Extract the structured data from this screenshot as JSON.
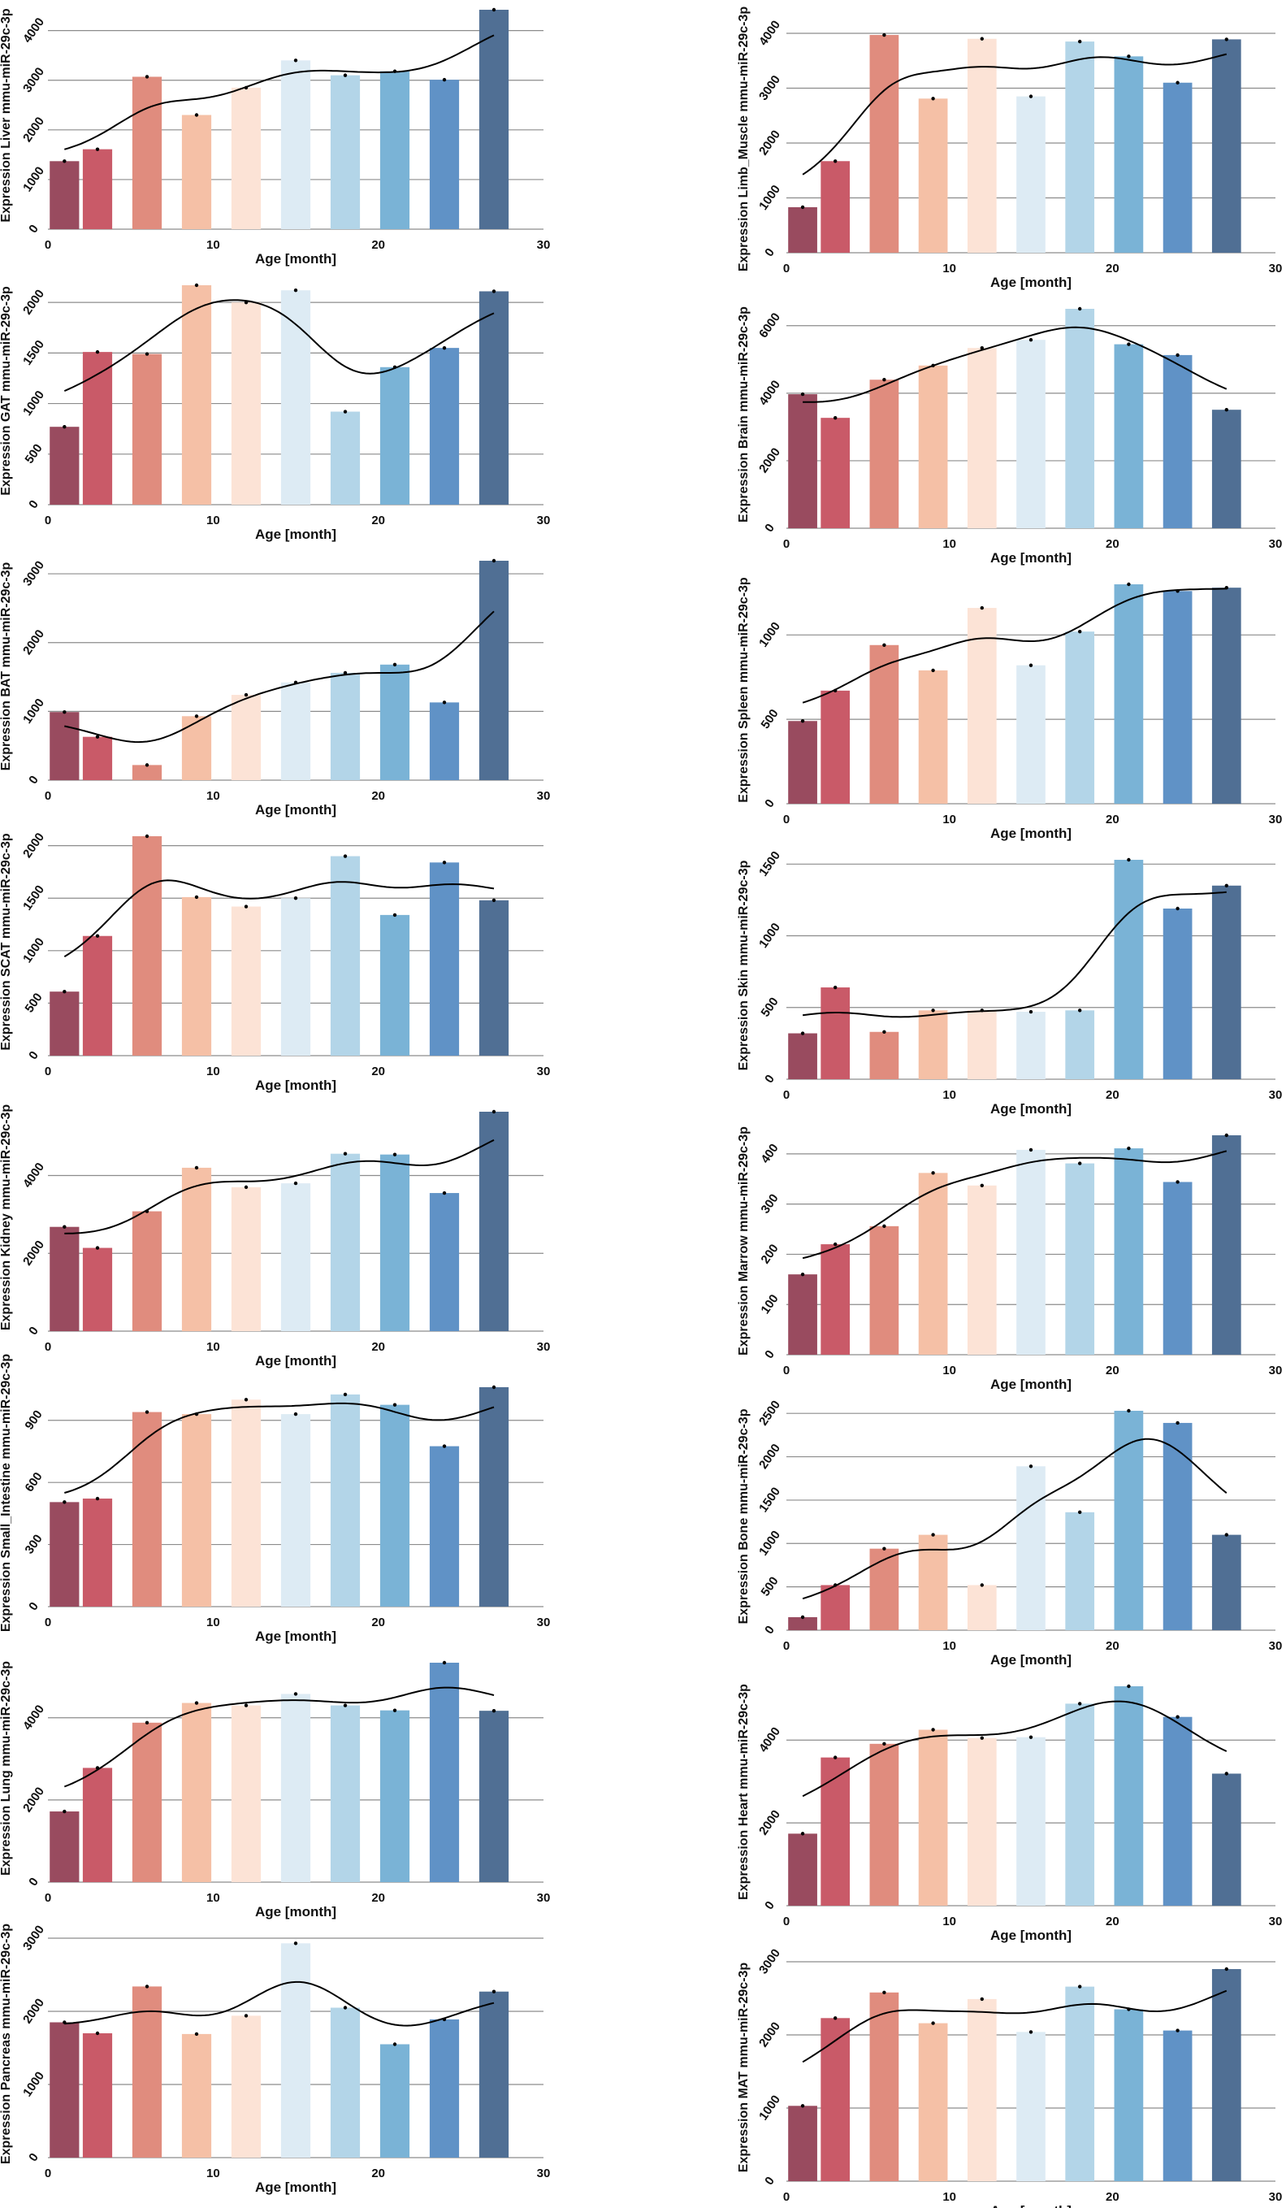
{
  "bar_colors": [
    "#994b5f",
    "#c95a68",
    "#e08c7e",
    "#f5c0a6",
    "#fce3d6",
    "#ddebf4",
    "#b3d5e8",
    "#7ab3d6",
    "#6092c6",
    "#506f94"
  ],
  "overlay": "smoothed trend line",
  "chart_data": [
    {
      "type": "bar",
      "xlabel": "Age [month]",
      "ylabel": "Expression Liver mmu-miR-29c-3p",
      "xlim": [
        0,
        30
      ],
      "xticks": [
        0,
        10,
        20,
        30
      ],
      "yticks": [
        0,
        1000,
        2000,
        3000,
        4000
      ],
      "x": [
        1,
        3,
        6,
        9,
        12,
        15,
        18,
        21,
        24,
        27
      ],
      "values": [
        1370,
        1610,
        3070,
        2300,
        2850,
        3400,
        3100,
        3180,
        3010,
        4420
      ]
    },
    {
      "type": "bar",
      "xlabel": "Age [month]",
      "ylabel": "Expression GAT mmu-miR-29c-3p",
      "xlim": [
        0,
        30
      ],
      "xticks": [
        0,
        10,
        20,
        30
      ],
      "yticks": [
        0,
        500,
        1000,
        1500,
        2000
      ],
      "x": [
        1,
        3,
        6,
        9,
        12,
        15,
        18,
        21,
        24,
        27
      ],
      "values": [
        770,
        1510,
        1490,
        2170,
        2000,
        2120,
        920,
        1360,
        1550,
        2110
      ]
    },
    {
      "type": "bar",
      "xlabel": "Age [month]",
      "ylabel": "Expression BAT mmu-miR-29c-3p",
      "xlim": [
        0,
        30
      ],
      "xticks": [
        0,
        10,
        20,
        30
      ],
      "yticks": [
        0,
        1000,
        2000,
        3000
      ],
      "x": [
        1,
        3,
        6,
        9,
        12,
        15,
        18,
        21,
        24,
        27
      ],
      "values": [
        990,
        630,
        220,
        930,
        1240,
        1420,
        1560,
        1680,
        1130,
        3190
      ]
    },
    {
      "type": "bar",
      "xlabel": "Age [month]",
      "ylabel": "Expression SCAT mmu-miR-29c-3p",
      "xlim": [
        0,
        30
      ],
      "xticks": [
        0,
        10,
        20,
        30
      ],
      "yticks": [
        0,
        500,
        1000,
        1500,
        2000
      ],
      "x": [
        1,
        3,
        6,
        9,
        12,
        15,
        18,
        21,
        24,
        27
      ],
      "values": [
        610,
        1140,
        2090,
        1510,
        1420,
        1500,
        1900,
        1340,
        1840,
        1480
      ]
    },
    {
      "type": "bar",
      "xlabel": "Age [month]",
      "ylabel": "Expression Kidney mmu-miR-29c-3p",
      "xlim": [
        0,
        30
      ],
      "xticks": [
        0,
        10,
        20,
        30
      ],
      "yticks": [
        0,
        2000,
        4000
      ],
      "x": [
        1,
        3,
        6,
        9,
        12,
        15,
        18,
        21,
        24,
        27
      ],
      "values": [
        2680,
        2140,
        3080,
        4200,
        3700,
        3800,
        4560,
        4540,
        3550,
        5640
      ]
    },
    {
      "type": "bar",
      "xlabel": "Age [month]",
      "ylabel": "Expression Small_Intestine mmu-miR-29c-3p",
      "xlim": [
        0,
        30
      ],
      "xticks": [
        0,
        10,
        20,
        30
      ],
      "yticks": [
        0,
        300,
        600,
        900
      ],
      "x": [
        1,
        3,
        6,
        9,
        12,
        15,
        18,
        21,
        24,
        27
      ],
      "values": [
        505,
        522,
        940,
        930,
        1000,
        930,
        1025,
        975,
        775,
        1060
      ]
    },
    {
      "type": "bar",
      "xlabel": "Age [month]",
      "ylabel": "Expression Lung mmu-miR-29c-3p",
      "xlim": [
        0,
        30
      ],
      "xticks": [
        0,
        10,
        20,
        30
      ],
      "yticks": [
        0,
        2000,
        4000
      ],
      "x": [
        1,
        3,
        6,
        9,
        12,
        15,
        18,
        21,
        24,
        27
      ],
      "values": [
        1720,
        2780,
        3880,
        4360,
        4300,
        4580,
        4300,
        4180,
        5340,
        4170
      ]
    },
    {
      "type": "bar",
      "xlabel": "Age [month]",
      "ylabel": "Expression Pancreas mmu-miR-29c-3p",
      "xlim": [
        0,
        30
      ],
      "xticks": [
        0,
        10,
        20,
        30
      ],
      "yticks": [
        0,
        1000,
        2000,
        3000
      ],
      "x": [
        1,
        3,
        6,
        9,
        12,
        15,
        18,
        21,
        24,
        27
      ],
      "values": [
        1850,
        1700,
        2340,
        1690,
        1940,
        2930,
        2050,
        1550,
        1890,
        2270
      ]
    },
    {
      "type": "bar",
      "xlabel": "Age [month]",
      "ylabel": "Expression Limb_Muscle mmu-miR-29c-3p",
      "xlim": [
        0,
        30
      ],
      "xticks": [
        0,
        10,
        20,
        30
      ],
      "yticks": [
        0,
        1000,
        2000,
        3000,
        4000
      ],
      "x": [
        1,
        3,
        6,
        9,
        12,
        15,
        18,
        21,
        24,
        27
      ],
      "values": [
        830,
        1670,
        3970,
        2810,
        3900,
        2850,
        3850,
        3580,
        3100,
        3890
      ]
    },
    {
      "type": "bar",
      "xlabel": "Age [month]",
      "ylabel": "Expression Brain mmu-miR-29c-3p",
      "xlim": [
        0,
        30
      ],
      "xticks": [
        0,
        10,
        20,
        30
      ],
      "yticks": [
        0,
        2000,
        4000,
        6000
      ],
      "x": [
        1,
        3,
        6,
        9,
        12,
        15,
        18,
        21,
        24,
        27
      ],
      "values": [
        3970,
        3270,
        4400,
        4820,
        5340,
        5580,
        6500,
        5450,
        5130,
        3510
      ]
    },
    {
      "type": "bar",
      "xlabel": "Age [month]",
      "ylabel": "Expression Spleen mmu-miR-29c-3p",
      "xlim": [
        0,
        30
      ],
      "xticks": [
        0,
        10,
        20,
        30
      ],
      "yticks": [
        0,
        500,
        1000
      ],
      "x": [
        1,
        3,
        6,
        9,
        12,
        15,
        18,
        21,
        24,
        27
      ],
      "values": [
        490,
        670,
        940,
        790,
        1160,
        820,
        1020,
        1300,
        1260,
        1280
      ]
    },
    {
      "type": "bar",
      "xlabel": "Age [month]",
      "ylabel": "Expression Skin mmu-miR-29c-3p",
      "xlim": [
        0,
        30
      ],
      "xticks": [
        0,
        10,
        20,
        30
      ],
      "yticks": [
        0,
        500,
        1000,
        1500
      ],
      "x": [
        1,
        3,
        6,
        9,
        12,
        15,
        18,
        21,
        24,
        27
      ],
      "values": [
        320,
        640,
        330,
        480,
        480,
        470,
        480,
        1530,
        1190,
        1350
      ]
    },
    {
      "type": "bar",
      "xlabel": "Age [month]",
      "ylabel": "Expression Marrow mmu-miR-29c-3p",
      "xlim": [
        0,
        30
      ],
      "xticks": [
        0,
        10,
        20,
        30
      ],
      "yticks": [
        0,
        100,
        200,
        300,
        400
      ],
      "x": [
        1,
        3,
        6,
        9,
        12,
        15,
        18,
        21,
        24,
        27
      ],
      "values": [
        160,
        220,
        256,
        362,
        337,
        408,
        381,
        411,
        344,
        437
      ]
    },
    {
      "type": "bar",
      "xlabel": "Age [month]",
      "ylabel": "Expression Bone mmu-miR-29c-3p",
      "xlim": [
        0,
        30
      ],
      "xticks": [
        0,
        10,
        20,
        30
      ],
      "yticks": [
        0,
        500,
        1000,
        1500,
        2000,
        2500
      ],
      "x": [
        1,
        3,
        6,
        9,
        12,
        15,
        18,
        21,
        24,
        27
      ],
      "values": [
        150,
        520,
        940,
        1100,
        520,
        1890,
        1360,
        2530,
        2390,
        1100
      ]
    },
    {
      "type": "bar",
      "xlabel": "Age [month]",
      "ylabel": "Expression Heart mmu-miR-29c-3p",
      "xlim": [
        0,
        30
      ],
      "xticks": [
        0,
        10,
        20,
        30
      ],
      "yticks": [
        0,
        2000,
        4000
      ],
      "x": [
        1,
        3,
        6,
        9,
        12,
        15,
        18,
        21,
        24,
        27
      ],
      "values": [
        1740,
        3580,
        3910,
        4250,
        4050,
        4070,
        4880,
        5300,
        4560,
        3190
      ]
    },
    {
      "type": "bar",
      "xlabel": "Age [month]",
      "ylabel": "Expression MAT mmu-miR-29c-3p",
      "xlim": [
        0,
        30
      ],
      "xticks": [
        0,
        10,
        20,
        30
      ],
      "yticks": [
        0,
        1000,
        2000,
        3000
      ],
      "x": [
        1,
        3,
        6,
        9,
        12,
        15,
        18,
        21,
        24,
        27
      ],
      "values": [
        1030,
        2230,
        2580,
        2160,
        2490,
        2040,
        2660,
        2350,
        2060,
        2900
      ]
    }
  ]
}
